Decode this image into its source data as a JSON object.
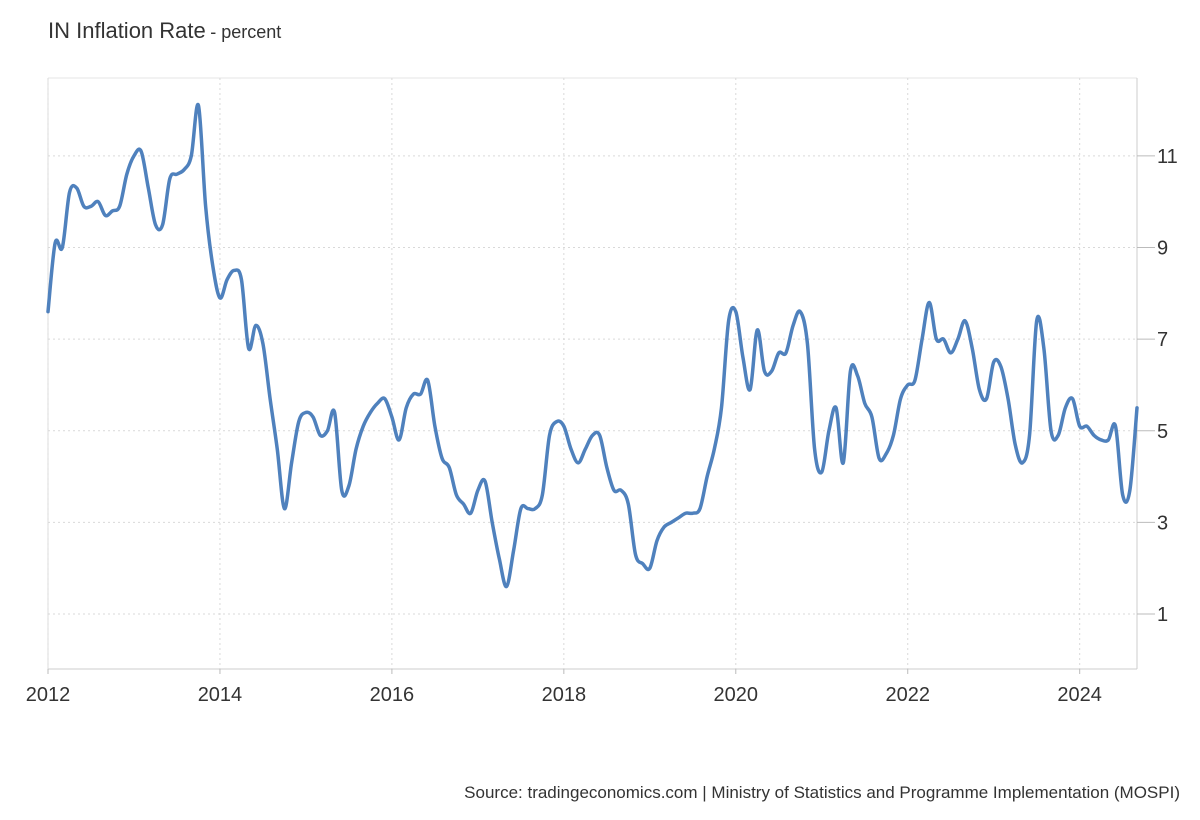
{
  "chart_data": {
    "type": "line",
    "title": "IN Inflation Rate",
    "subtitle": "- percent",
    "source": "Source: tradingeconomics.com | Ministry of Statistics and Programme Implementation (MOSPI)",
    "xlim": [
      "2012-01",
      "2024-09"
    ],
    "ylim": [
      -0.2,
      12.7
    ],
    "y_ticks": [
      1,
      3,
      5,
      7,
      9,
      11
    ],
    "x_ticks": [
      "2012",
      "2014",
      "2016",
      "2018",
      "2020",
      "2022",
      "2024"
    ],
    "grid": true,
    "y_axis_side": "right",
    "line_color": "#4f81bd",
    "series": [
      {
        "x": [
          "2012-01",
          "2012-02",
          "2012-03",
          "2012-04",
          "2012-05",
          "2012-06",
          "2012-07",
          "2012-08",
          "2012-09",
          "2012-10",
          "2012-11",
          "2012-12",
          "2013-01",
          "2013-02",
          "2013-03",
          "2013-04",
          "2013-05",
          "2013-06",
          "2013-07",
          "2013-08",
          "2013-09",
          "2013-10",
          "2013-11",
          "2013-12",
          "2014-01",
          "2014-02",
          "2014-03",
          "2014-04",
          "2014-05",
          "2014-06",
          "2014-07",
          "2014-08",
          "2014-09",
          "2014-10",
          "2014-11",
          "2014-12",
          "2015-01",
          "2015-02",
          "2015-03",
          "2015-04",
          "2015-05",
          "2015-06",
          "2015-07",
          "2015-08",
          "2015-09",
          "2015-10",
          "2015-11",
          "2015-12",
          "2016-01",
          "2016-02",
          "2016-03",
          "2016-04",
          "2016-05",
          "2016-06",
          "2016-07",
          "2016-08",
          "2016-09",
          "2016-10",
          "2016-11",
          "2016-12",
          "2017-01",
          "2017-02",
          "2017-03",
          "2017-04",
          "2017-05",
          "2017-06",
          "2017-07",
          "2017-08",
          "2017-09",
          "2017-10",
          "2017-11",
          "2017-12",
          "2018-01",
          "2018-02",
          "2018-03",
          "2018-04",
          "2018-05",
          "2018-06",
          "2018-07",
          "2018-08",
          "2018-09",
          "2018-10",
          "2018-11",
          "2018-12",
          "2019-01",
          "2019-02",
          "2019-03",
          "2019-04",
          "2019-05",
          "2019-06",
          "2019-07",
          "2019-08",
          "2019-09",
          "2019-10",
          "2019-11",
          "2019-12",
          "2020-01",
          "2020-02",
          "2020-03",
          "2020-04",
          "2020-05",
          "2020-06",
          "2020-07",
          "2020-08",
          "2020-09",
          "2020-10",
          "2020-11",
          "2020-12",
          "2021-01",
          "2021-02",
          "2021-03",
          "2021-04",
          "2021-05",
          "2021-06",
          "2021-07",
          "2021-08",
          "2021-09",
          "2021-10",
          "2021-11",
          "2021-12",
          "2022-01",
          "2022-02",
          "2022-03",
          "2022-04",
          "2022-05",
          "2022-06",
          "2022-07",
          "2022-08",
          "2022-09",
          "2022-10",
          "2022-11",
          "2022-12",
          "2023-01",
          "2023-02",
          "2023-03",
          "2023-04",
          "2023-05",
          "2023-06",
          "2023-07",
          "2023-08",
          "2023-09",
          "2023-10",
          "2023-11",
          "2023-12",
          "2024-01",
          "2024-02",
          "2024-03",
          "2024-04",
          "2024-05",
          "2024-06",
          "2024-07",
          "2024-08",
          "2024-09"
        ],
        "values": [
          7.6,
          9.1,
          9.0,
          10.2,
          10.3,
          9.9,
          9.9,
          10.0,
          9.7,
          9.8,
          9.9,
          10.6,
          11.0,
          11.1,
          10.3,
          9.5,
          9.5,
          10.5,
          10.6,
          10.7,
          11.0,
          12.1,
          9.9,
          8.6,
          7.9,
          8.3,
          8.5,
          8.3,
          6.8,
          7.3,
          6.9,
          5.7,
          4.6,
          3.3,
          4.3,
          5.2,
          5.4,
          5.3,
          4.9,
          5.0,
          5.4,
          3.7,
          3.8,
          4.6,
          5.1,
          5.4,
          5.6,
          5.7,
          5.3,
          4.8,
          5.5,
          5.8,
          5.8,
          6.1,
          5.1,
          4.4,
          4.2,
          3.6,
          3.4,
          3.2,
          3.7,
          3.9,
          3.0,
          2.2,
          1.6,
          2.4,
          3.3,
          3.3,
          3.3,
          3.6,
          4.9,
          5.2,
          5.1,
          4.6,
          4.3,
          4.6,
          4.9,
          4.9,
          4.2,
          3.7,
          3.7,
          3.4,
          2.3,
          2.1,
          2.0,
          2.6,
          2.9,
          3.0,
          3.1,
          3.2,
          3.2,
          3.3,
          4.0,
          4.6,
          5.5,
          7.4,
          7.6,
          6.6,
          5.9,
          7.2,
          6.3,
          6.3,
          6.7,
          6.7,
          7.3,
          7.6,
          6.9,
          4.6,
          4.1,
          5.0,
          5.5,
          4.3,
          6.3,
          6.2,
          5.6,
          5.3,
          4.4,
          4.5,
          4.9,
          5.7,
          6.0,
          6.1,
          7.0,
          7.8,
          7.0,
          7.0,
          6.7,
          7.0,
          7.4,
          6.8,
          5.9,
          5.7,
          6.5,
          6.4,
          5.7,
          4.7,
          4.3,
          4.9,
          7.4,
          6.8,
          5.0,
          4.9,
          5.5,
          5.7,
          5.1,
          5.1,
          4.9,
          4.8,
          4.8,
          5.1,
          3.6,
          3.7,
          5.5
        ]
      }
    ]
  }
}
